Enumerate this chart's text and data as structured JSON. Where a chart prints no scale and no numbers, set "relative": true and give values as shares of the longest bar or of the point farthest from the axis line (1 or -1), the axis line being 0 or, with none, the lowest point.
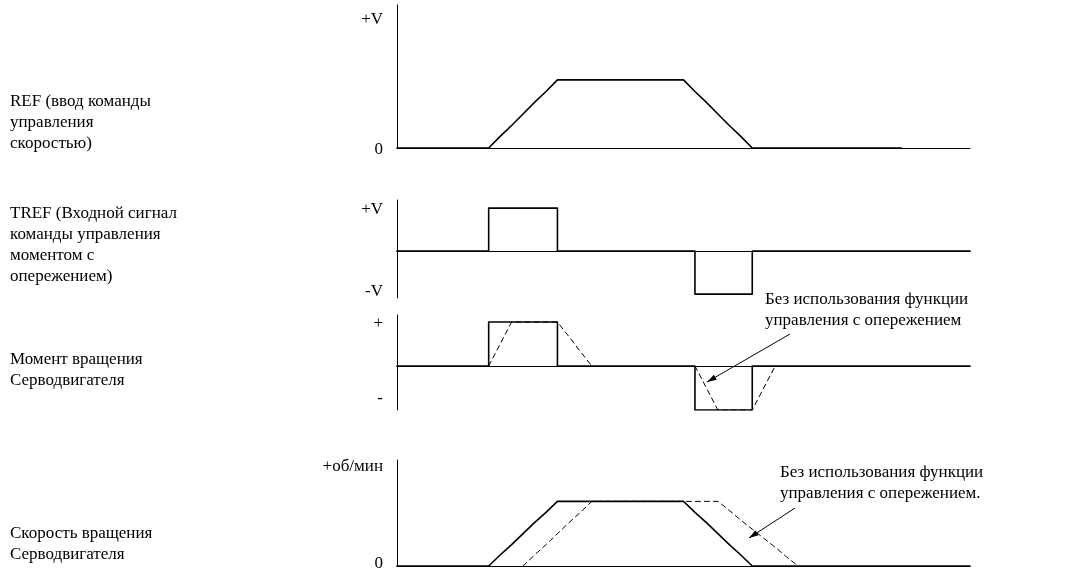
{
  "chart_data": [
    {
      "type": "line",
      "ylabel": "REF (ввод команды управления скоростью)",
      "categories": [
        null,
        null,
        null,
        null,
        null,
        null,
        null,
        null,
        null,
        null,
        null,
        null,
        null,
        null,
        null,
        null,
        null,
        null,
        null,
        null,
        null,
        null,
        null,
        null,
        null,
        null,
        null,
        null,
        null,
        null,
        null,
        null,
        null,
        null,
        null,
        null,
        null,
        null,
        null,
        null,
        null,
        null,
        null,
        null,
        null,
        null,
        null,
        null,
        null,
        null,
        null
      ],
      "relative": true,
      "tick_labels": false,
      "grid": false,
      "marker": "none",
      "annotations": [
        "+V",
        "0"
      ],
      "series": [
        {
          "color": "#000000",
          "line_style": "solid",
          "values": [
            0,
            0,
            0,
            0,
            0,
            0,
            0,
            0,
            0,
            0.17,
            0.33,
            0.5,
            0.67,
            0.83,
            1,
            1,
            1,
            1,
            1,
            1,
            1,
            1,
            1,
            1,
            1,
            1,
            0.83,
            0.67,
            0.5,
            0.33,
            0.17,
            0,
            0,
            0,
            0,
            0,
            0,
            0,
            0,
            0,
            0,
            0,
            0,
            0,
            0,
            null,
            null,
            null,
            null,
            null,
            null
          ]
        }
      ]
    },
    {
      "type": "step",
      "ylabel": "TREF (Входной сигнал команды управления моментом с опережением)",
      "categories": [
        null,
        null,
        null,
        null,
        null,
        null,
        null,
        null,
        null,
        null,
        null,
        null,
        null,
        null,
        null,
        null,
        null,
        null,
        null,
        null,
        null,
        null,
        null,
        null,
        null,
        null,
        null,
        null,
        null,
        null,
        null,
        null,
        null,
        null,
        null,
        null,
        null,
        null,
        null,
        null,
        null,
        null,
        null,
        null,
        null,
        null,
        null,
        null,
        null,
        null,
        null
      ],
      "relative": true,
      "tick_labels": false,
      "grid": false,
      "marker": "none",
      "annotations": [
        "+V",
        "-V"
      ],
      "series": [
        {
          "color": "#000000",
          "line_style": "solid",
          "values": [
            0,
            0,
            0,
            0,
            0,
            0,
            0,
            0,
            1,
            1,
            1,
            1,
            1,
            1,
            0,
            0,
            0,
            0,
            0,
            0,
            0,
            0,
            0,
            0,
            0,
            0,
            -1,
            -1,
            -1,
            -1,
            -1,
            0,
            0,
            0,
            0,
            0,
            0,
            0,
            0,
            0,
            0,
            0,
            0,
            0,
            0,
            0,
            0,
            0,
            0,
            0,
            0
          ]
        }
      ]
    },
    {
      "type": "step",
      "ylabel": "Момент вращения Серводвигателя",
      "categories": [
        null,
        null,
        null,
        null,
        null,
        null,
        null,
        null,
        null,
        null,
        null,
        null,
        null,
        null,
        null,
        null,
        null,
        null,
        null,
        null,
        null,
        null,
        null,
        null,
        null,
        null,
        null,
        null,
        null,
        null,
        null,
        null,
        null,
        null,
        null,
        null,
        null,
        null,
        null,
        null,
        null,
        null,
        null,
        null,
        null,
        null,
        null,
        null,
        null,
        null,
        null
      ],
      "relative": true,
      "tick_labels": false,
      "grid": false,
      "marker": "none",
      "annotations": [
        "Без использования функции управления с опережением",
        "+",
        "-"
      ],
      "series": [
        {
          "color": "#000000",
          "line_style": "solid",
          "values": [
            0,
            0,
            0,
            0,
            0,
            0,
            0,
            0,
            1,
            1,
            1,
            1,
            1,
            1,
            0,
            0,
            0,
            0,
            0,
            0,
            0,
            0,
            0,
            0,
            0,
            0,
            -1,
            -1,
            -1,
            -1,
            -1,
            0,
            0,
            0,
            0,
            0,
            0,
            0,
            0,
            0,
            0,
            0,
            0,
            0,
            0,
            0,
            0,
            0,
            0,
            0,
            0
          ]
        },
        {
          "type": "line",
          "color": "#000000",
          "line_style": "dashed",
          "values": [
            null,
            null,
            null,
            null,
            null,
            null,
            null,
            null,
            0,
            0.5,
            1,
            1,
            1,
            1,
            1,
            0.67,
            0.33,
            0,
            null,
            null,
            null,
            null,
            null,
            null,
            null,
            null,
            0,
            -0.5,
            -1,
            -1,
            -1,
            -1,
            -0.5,
            0,
            null,
            null,
            null,
            null,
            null,
            null,
            null,
            null,
            null,
            null,
            null,
            null,
            null,
            null,
            null,
            null,
            null
          ]
        }
      ]
    },
    {
      "type": "line",
      "ylabel": "Скорость вращения Серводвигателя",
      "categories": [
        null,
        null,
        null,
        null,
        null,
        null,
        null,
        null,
        null,
        null,
        null,
        null,
        null,
        null,
        null,
        null,
        null,
        null,
        null,
        null,
        null,
        null,
        null,
        null,
        null,
        null,
        null,
        null,
        null,
        null,
        null,
        null,
        null,
        null,
        null,
        null,
        null,
        null,
        null,
        null,
        null,
        null,
        null,
        null,
        null,
        null,
        null,
        null,
        null,
        null,
        null
      ],
      "relative": true,
      "tick_labels": false,
      "grid": false,
      "marker": "none",
      "annotations": [
        "Без использования функции управления с опережением.",
        "+об/мин",
        "0"
      ],
      "series": [
        {
          "color": "#000000",
          "line_style": "solid",
          "values": [
            0,
            0,
            0,
            0,
            0,
            0,
            0,
            0,
            0,
            0.17,
            0.33,
            0.5,
            0.67,
            0.83,
            1,
            1,
            1,
            1,
            1,
            1,
            1,
            1,
            1,
            1,
            1,
            1,
            0.83,
            0.67,
            0.5,
            0.33,
            0.17,
            0,
            0,
            0,
            0,
            0,
            0,
            0,
            0,
            0,
            0,
            0,
            0,
            0,
            0,
            0,
            0,
            0,
            0,
            0,
            0
          ]
        },
        {
          "color": "#000000",
          "line_style": "dashed",
          "values": [
            null,
            null,
            null,
            null,
            null,
            null,
            null,
            null,
            null,
            null,
            null,
            0,
            0.17,
            0.33,
            0.5,
            0.67,
            0.83,
            1,
            1,
            1,
            1,
            1,
            1,
            1,
            1,
            1,
            1,
            1,
            1,
            0.86,
            0.71,
            0.57,
            0.43,
            0.29,
            0.14,
            0,
            null,
            null,
            null,
            null,
            null,
            null,
            null,
            null,
            null,
            null,
            null,
            null,
            null,
            null,
            null
          ]
        }
      ]
    }
  ]
}
